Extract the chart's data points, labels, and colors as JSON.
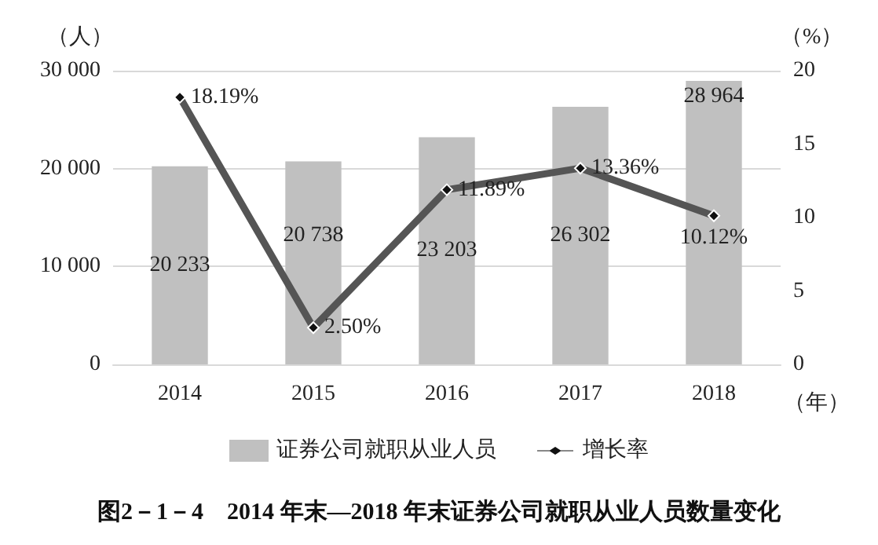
{
  "chart_data": {
    "type": "bar",
    "title": "图2－1－4　2014 年末—2018 年末证券公司就职从业人员数量变化",
    "categories": [
      "2014",
      "2015",
      "2016",
      "2017",
      "2018"
    ],
    "xlabel": "（年）",
    "ylabel": "（人）",
    "y2label": "（%）",
    "series": [
      {
        "name": "证券公司就职从业人员",
        "color": "#c0c0c0",
        "values": [
          20233,
          20738,
          23203,
          26302,
          28964
        ],
        "value_labels": [
          "20 233",
          "20 738",
          "23 203",
          "26 302",
          "28 964"
        ]
      },
      {
        "name": "增长率",
        "type": "line",
        "axis": "y2",
        "color": "#555555",
        "values": [
          18.19,
          2.5,
          11.89,
          13.36,
          10.12
        ],
        "value_labels": [
          "18.19%",
          "2.50%",
          "11.89%",
          "13.36%",
          "10.12%"
        ]
      }
    ],
    "ylim": [
      0,
      30000
    ],
    "yticks": [
      0,
      {
        "value": 10000,
        "label": "10 000"
      },
      {
        "value": 20000,
        "label": "20 000"
      },
      {
        "value": 30000,
        "label": "30 000"
      }
    ],
    "y2lim": [
      0,
      20
    ],
    "y2ticks": [
      0,
      5,
      10,
      15,
      20
    ],
    "grid": "y",
    "legend": "bottom",
    "marker": "diamond",
    "line_style": "solid"
  }
}
